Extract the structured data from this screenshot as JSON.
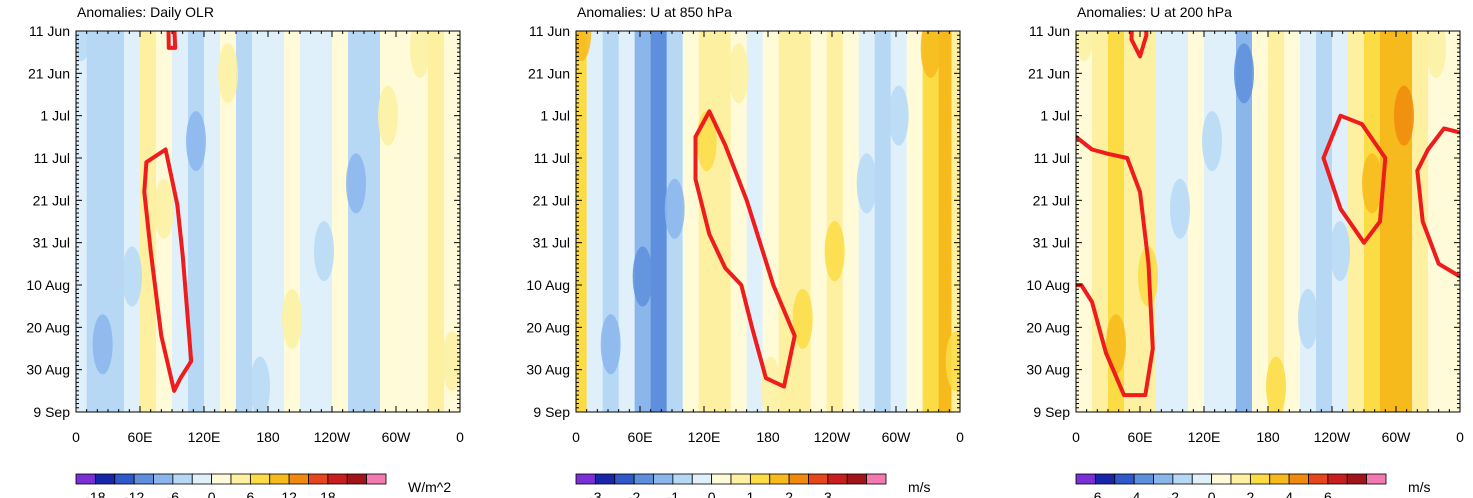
{
  "chart_data": [
    {
      "type": "heatmap",
      "title": "Anomalies: Daily OLR",
      "units": "W/m^2",
      "x_ticks": [
        "0",
        "60E",
        "120E",
        "180",
        "120W",
        "60W",
        "0"
      ],
      "y_ticks": [
        "11 Jun",
        "21 Jun",
        "1 Jul",
        "11 Jul",
        "21 Jul",
        "31 Jul",
        "10 Aug",
        "20 Aug",
        "30 Aug",
        "9 Sep"
      ],
      "colorbar_levels": [
        "-18",
        "-12",
        "-6",
        "0",
        "6",
        "12",
        "18"
      ],
      "colorbar_colors": [
        "#7b2fd6",
        "#1726a8",
        "#2f58c8",
        "#5e8fdc",
        "#8bb6ec",
        "#b7d8f5",
        "#dff0fb",
        "#fffbd8",
        "#fdf0a1",
        "#fbdc45",
        "#f6ba1c",
        "#f08a0e",
        "#e6461c",
        "#c91e1e",
        "#a1141a",
        "#f37ab0"
      ],
      "columns": [
        {
          "lon": 0,
          "v": -1
        },
        {
          "lon": 10,
          "v": -4
        },
        {
          "lon": 20,
          "v": -6
        },
        {
          "lon": 30,
          "v": -4
        },
        {
          "lon": 45,
          "v": -2
        },
        {
          "lon": 60,
          "v": 3
        },
        {
          "lon": 75,
          "v": 1
        },
        {
          "lon": 90,
          "v": -1
        },
        {
          "lon": 105,
          "v": -4
        },
        {
          "lon": 120,
          "v": -3
        },
        {
          "lon": 135,
          "v": 0
        },
        {
          "lon": 150,
          "v": -6
        },
        {
          "lon": 165,
          "v": -3
        },
        {
          "lon": 180,
          "v": -1
        },
        {
          "lon": 195,
          "v": 1
        },
        {
          "lon": 210,
          "v": -1
        },
        {
          "lon": 225,
          "v": -3
        },
        {
          "lon": 240,
          "v": 0
        },
        {
          "lon": 255,
          "v": -4
        },
        {
          "lon": 270,
          "v": -6
        },
        {
          "lon": 285,
          "v": 0
        },
        {
          "lon": 300,
          "v": 1
        },
        {
          "lon": 315,
          "v": 1
        },
        {
          "lon": 330,
          "v": 3
        },
        {
          "lon": 345,
          "v": 1
        }
      ],
      "contours": [
        [
          [
            66,
            31.0
          ],
          [
            84,
            28.0
          ],
          [
            95,
            41.0
          ],
          [
            100,
            53.0
          ],
          [
            108,
            78.0
          ],
          [
            98,
            82.0
          ],
          [
            92,
            85.0
          ],
          [
            80,
            72.0
          ],
          [
            70,
            52.0
          ],
          [
            64,
            38.0
          ],
          [
            66,
            31.0
          ]
        ],
        [
          [
            85,
            -27.0
          ],
          [
            88,
            -24.0
          ],
          [
            93,
            4.0
          ],
          [
            87,
            4.0
          ],
          [
            85,
            -27.0
          ]
        ]
      ]
    },
    {
      "type": "heatmap",
      "title": "Anomalies: U at 850 hPa",
      "units": "m/s",
      "x_ticks": [
        "0",
        "60E",
        "120E",
        "180",
        "120W",
        "60W",
        "0"
      ],
      "y_ticks": [
        "11 Jun",
        "21 Jun",
        "1 Jul",
        "11 Jul",
        "21 Jul",
        "31 Jul",
        "10 Aug",
        "20 Aug",
        "30 Aug",
        "9 Sep"
      ],
      "colorbar_levels": [
        "-3",
        "-2",
        "-1",
        "0",
        "1",
        "2",
        "3"
      ],
      "colorbar_colors": [
        "#7b2fd6",
        "#1726a8",
        "#2f58c8",
        "#5e8fdc",
        "#8bb6ec",
        "#b7d8f5",
        "#dff0fb",
        "#fffbd8",
        "#fdf0a1",
        "#fbdc45",
        "#f6ba1c",
        "#f08a0e",
        "#e6461c",
        "#c91e1e",
        "#a1141a",
        "#f37ab0"
      ],
      "columns": [
        {
          "lon": 0,
          "v": 1.2
        },
        {
          "lon": 10,
          "v": -0.5
        },
        {
          "lon": 25,
          "v": -0.9
        },
        {
          "lon": 40,
          "v": -0.4
        },
        {
          "lon": 55,
          "v": -1.2
        },
        {
          "lon": 70,
          "v": -1.6
        },
        {
          "lon": 85,
          "v": -0.6
        },
        {
          "lon": 100,
          "v": 0.3
        },
        {
          "lon": 115,
          "v": 0.9
        },
        {
          "lon": 130,
          "v": 0.5
        },
        {
          "lon": 145,
          "v": 0.2
        },
        {
          "lon": 160,
          "v": -0.3
        },
        {
          "lon": 175,
          "v": 0.4
        },
        {
          "lon": 190,
          "v": 0.6
        },
        {
          "lon": 205,
          "v": 0.8
        },
        {
          "lon": 220,
          "v": 0.3
        },
        {
          "lon": 235,
          "v": 0.7
        },
        {
          "lon": 250,
          "v": 0.4
        },
        {
          "lon": 265,
          "v": -0.2
        },
        {
          "lon": 280,
          "v": -0.7
        },
        {
          "lon": 295,
          "v": -0.2
        },
        {
          "lon": 310,
          "v": 0.4
        },
        {
          "lon": 325,
          "v": 1.4
        },
        {
          "lon": 340,
          "v": 1.7
        },
        {
          "lon": 352,
          "v": 0.8
        }
      ],
      "contours": [
        [
          [
            112,
            25.0
          ],
          [
            125,
            19.0
          ],
          [
            140,
            27.0
          ],
          [
            160,
            40.0
          ],
          [
            175,
            52.0
          ],
          [
            185,
            60.0
          ],
          [
            205,
            72.0
          ],
          [
            195,
            84.0
          ],
          [
            178,
            82.0
          ],
          [
            165,
            70.0
          ],
          [
            155,
            60.0
          ],
          [
            140,
            56.0
          ],
          [
            125,
            48.0
          ],
          [
            112,
            35.0
          ],
          [
            112,
            25.0
          ]
        ]
      ]
    },
    {
      "type": "heatmap",
      "title": "Anomalies: U at 200 hPa",
      "units": "m/s",
      "x_ticks": [
        "0",
        "60E",
        "120E",
        "180",
        "120W",
        "60W",
        "0"
      ],
      "y_ticks": [
        "11 Jun",
        "21 Jun",
        "1 Jul",
        "11 Jul",
        "21 Jul",
        "31 Jul",
        "10 Aug",
        "20 Aug",
        "30 Aug",
        "9 Sep"
      ],
      "colorbar_levels": [
        "-6",
        "-4",
        "-2",
        "0",
        "2",
        "4",
        "6"
      ],
      "colorbar_colors": [
        "#7b2fd6",
        "#1726a8",
        "#2f58c8",
        "#5e8fdc",
        "#8bb6ec",
        "#b7d8f5",
        "#dff0fb",
        "#fffbd8",
        "#fdf0a1",
        "#fbdc45",
        "#f6ba1c",
        "#f08a0e",
        "#e6461c",
        "#c91e1e",
        "#a1141a",
        "#f37ab0"
      ],
      "columns": [
        {
          "lon": 0,
          "v": 0.8
        },
        {
          "lon": 15,
          "v": 1.5
        },
        {
          "lon": 30,
          "v": 2.2
        },
        {
          "lon": 45,
          "v": 1.8
        },
        {
          "lon": 60,
          "v": 1.0
        },
        {
          "lon": 75,
          "v": -0.3
        },
        {
          "lon": 90,
          "v": -1.0
        },
        {
          "lon": 105,
          "v": 0.2
        },
        {
          "lon": 120,
          "v": -0.4
        },
        {
          "lon": 135,
          "v": -0.6
        },
        {
          "lon": 150,
          "v": -2.2
        },
        {
          "lon": 165,
          "v": 0.5
        },
        {
          "lon": 180,
          "v": 1.2
        },
        {
          "lon": 195,
          "v": 0.4
        },
        {
          "lon": 210,
          "v": -0.8
        },
        {
          "lon": 225,
          "v": -2.0
        },
        {
          "lon": 240,
          "v": -0.5
        },
        {
          "lon": 255,
          "v": 1.5
        },
        {
          "lon": 270,
          "v": 2.5
        },
        {
          "lon": 285,
          "v": 3.8
        },
        {
          "lon": 300,
          "v": 3.0
        },
        {
          "lon": 315,
          "v": 1.8
        },
        {
          "lon": 330,
          "v": 0.6
        },
        {
          "lon": 345,
          "v": 0.2
        }
      ],
      "contours": [
        [
          [
            0,
            25.0
          ],
          [
            15,
            28.0
          ],
          [
            30,
            29.0
          ],
          [
            48,
            30.0
          ],
          [
            60,
            38.0
          ],
          [
            68,
            55.0
          ],
          [
            72,
            75.0
          ],
          [
            65,
            86.0
          ],
          [
            45,
            86.0
          ],
          [
            28,
            76.0
          ],
          [
            15,
            64.0
          ],
          [
            5,
            60.0
          ],
          [
            0,
            60.0
          ]
        ],
        [
          [
            232,
            30.0
          ],
          [
            248,
            20.0
          ],
          [
            268,
            22.0
          ],
          [
            290,
            30.0
          ],
          [
            285,
            45.0
          ],
          [
            270,
            50.0
          ],
          [
            248,
            42.0
          ],
          [
            232,
            30.0
          ]
        ],
        [
          [
            360,
            24.0
          ],
          [
            345,
            23.0
          ],
          [
            330,
            28.0
          ],
          [
            320,
            33.0
          ],
          [
            325,
            45.0
          ],
          [
            340,
            55.0
          ],
          [
            360,
            58.0
          ]
        ],
        [
          [
            55,
            -25.0
          ],
          [
            62,
            -20.0
          ],
          [
            66,
            1.0
          ],
          [
            60,
            6.0
          ],
          [
            52,
            2.0
          ],
          [
            55,
            -25.0
          ]
        ]
      ]
    }
  ]
}
